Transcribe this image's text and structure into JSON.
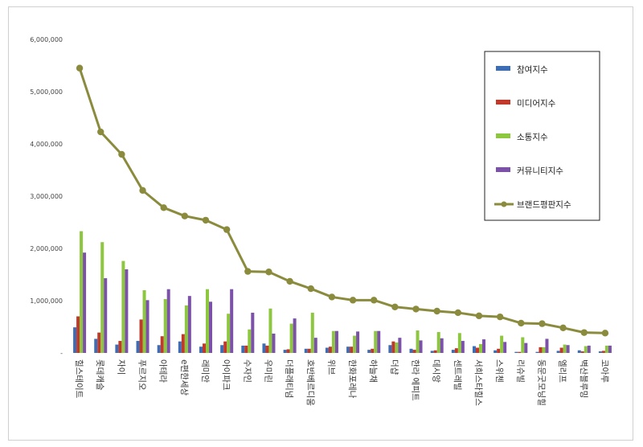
{
  "chart_data": {
    "type": "bar",
    "title": "",
    "xlabel": "",
    "ylabel": "",
    "ylim": [
      0,
      6000000
    ],
    "yticks": [
      0,
      1000000,
      2000000,
      3000000,
      4000000,
      5000000,
      6000000
    ],
    "ytick_labels": [
      "-",
      "1,000,000",
      "2,000,000",
      "3,000,000",
      "4,000,000",
      "5,000,000",
      "6,000,000"
    ],
    "grid": false,
    "legend_position": "top-right",
    "categories": [
      "힐스테이트",
      "롯데캐슬",
      "자이",
      "푸르지오",
      "아이파크_x",
      "e편한세상",
      "래미안",
      "아이파크",
      "수자인",
      "우미린",
      "더플래티넘",
      "호반베르디움",
      "위브",
      "한화포레나",
      "하늘채",
      "더샵",
      "한라 에피트",
      "데시앙",
      "센트레빌",
      "서희스타힐스",
      "스위첸",
      "리슈빌",
      "동문굿모닝힐",
      "엘리프",
      "벽산블루밍",
      "코아루"
    ],
    "series": [
      {
        "name": "참여지수",
        "kind": "bar",
        "color": "#3d6db5",
        "values": [
          490000,
          270000,
          160000,
          230000,
          150000,
          220000,
          120000,
          150000,
          140000,
          180000,
          60000,
          80000,
          100000,
          120000,
          60000,
          150000,
          80000,
          40000,
          60000,
          130000,
          50000,
          20000,
          20000,
          40000,
          50000,
          30000
        ]
      },
      {
        "name": "미디어지수",
        "kind": "bar",
        "color": "#c0392b",
        "values": [
          700000,
          390000,
          230000,
          640000,
          320000,
          360000,
          180000,
          220000,
          140000,
          140000,
          70000,
          80000,
          120000,
          120000,
          80000,
          220000,
          60000,
          50000,
          90000,
          100000,
          80000,
          20000,
          110000,
          100000,
          30000,
          40000
        ]
      },
      {
        "name": "소통지수",
        "kind": "bar",
        "color": "#8dc63f",
        "values": [
          2330000,
          2120000,
          1760000,
          1200000,
          1030000,
          910000,
          1220000,
          750000,
          450000,
          850000,
          560000,
          770000,
          420000,
          330000,
          420000,
          200000,
          430000,
          400000,
          380000,
          170000,
          330000,
          300000,
          110000,
          160000,
          130000,
          140000
        ]
      },
      {
        "name": "커뮤니티지수",
        "kind": "bar",
        "color": "#7b52a8",
        "values": [
          1920000,
          1430000,
          1600000,
          1010000,
          1220000,
          1090000,
          980000,
          1220000,
          770000,
          370000,
          660000,
          290000,
          420000,
          410000,
          420000,
          290000,
          240000,
          280000,
          230000,
          260000,
          210000,
          190000,
          270000,
          150000,
          140000,
          140000
        ]
      },
      {
        "name": "브랜드평판지수",
        "kind": "line",
        "color": "#8b8b3e",
        "values": [
          5450000,
          4230000,
          3800000,
          3110000,
          2780000,
          2620000,
          2540000,
          2360000,
          1560000,
          1550000,
          1370000,
          1230000,
          1070000,
          1010000,
          1010000,
          880000,
          840000,
          800000,
          770000,
          710000,
          690000,
          570000,
          560000,
          480000,
          390000,
          380000
        ]
      }
    ]
  }
}
